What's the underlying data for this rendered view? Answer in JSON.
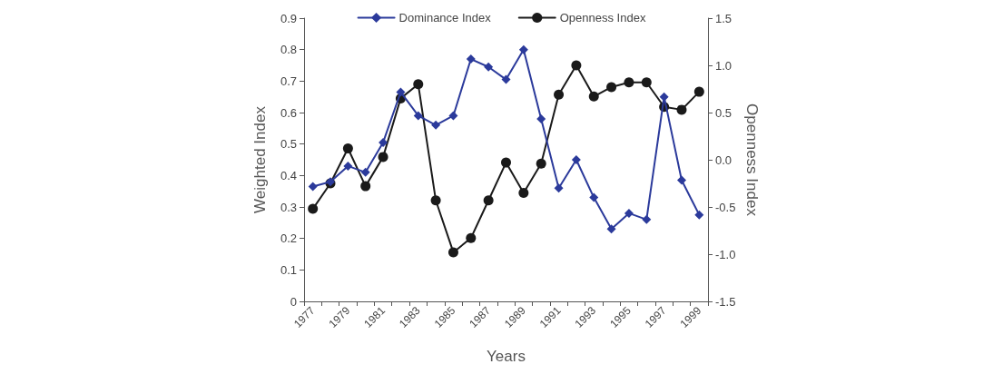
{
  "chart_data": {
    "type": "line",
    "xlabel": "Years",
    "ylabel": "Weighted Index",
    "y2label": "Openness Index",
    "categories": [
      "1977",
      null,
      "1979",
      null,
      "1981",
      null,
      "1983",
      null,
      "1985",
      null,
      "1987",
      null,
      "1989",
      null,
      "1991",
      null,
      "1993",
      null,
      "1995",
      null,
      "1997",
      null,
      "1999"
    ],
    "series": [
      {
        "name": "Dominance Index",
        "color": "#2b3a9b",
        "marker": "diamond",
        "values": [
          0.365,
          0.38,
          0.43,
          0.41,
          0.505,
          0.665,
          0.59,
          0.56,
          0.59,
          0.77,
          0.745,
          0.705,
          0.8,
          0.58,
          0.36,
          0.45,
          0.33,
          0.23,
          0.28,
          0.26,
          0.65,
          0.385,
          0.275
        ]
      },
      {
        "name": "Openness Index",
        "color": "#1a1a1a",
        "marker": "circle",
        "axis": "y2",
        "values": [
          -0.52,
          -0.25,
          0.12,
          -0.28,
          0.03,
          0.65,
          0.8,
          -0.43,
          -0.98,
          -0.83,
          -0.43,
          -0.03,
          -0.35,
          -0.04,
          0.69,
          1.0,
          0.67,
          0.77,
          0.82,
          0.82,
          0.56,
          0.53,
          0.72
        ]
      }
    ],
    "ylim": [
      0,
      0.9
    ],
    "yticks": [
      0,
      0.1,
      0.2,
      0.3,
      0.4,
      0.5,
      0.6,
      0.7,
      0.8,
      0.9
    ],
    "y2lim": [
      -1.5,
      1.5
    ],
    "y2ticks": [
      {
        "value": -1.5,
        "label": "-1.5"
      },
      {
        "value": -1,
        "label": "-1.0"
      },
      {
        "value": -0.5,
        "label": "-0.5"
      },
      {
        "value": 0,
        "label": "0.0"
      },
      {
        "value": 0.5,
        "label": "0.5"
      },
      {
        "value": 1,
        "label": "1.0"
      },
      {
        "value": 1.5,
        "label": "1.5"
      }
    ],
    "legend": "top",
    "grid": false,
    "line_style": "solid"
  }
}
